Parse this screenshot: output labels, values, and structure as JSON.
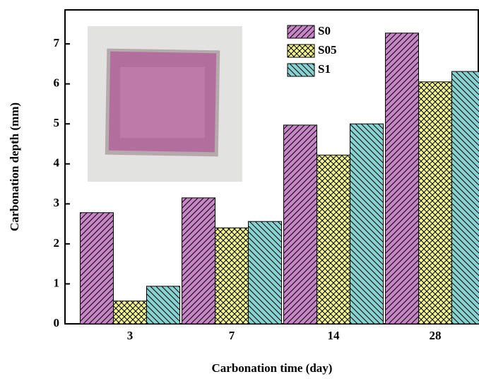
{
  "chart_data": {
    "type": "bar",
    "xlabel": "Carbonation time (day)",
    "ylabel": "Carbonation depth (mm)",
    "categories": [
      "3",
      "7",
      "14",
      "28"
    ],
    "series": [
      {
        "name": "S0",
        "color": "#c785c7",
        "hatch": "/",
        "values": [
          2.78,
          3.15,
          4.97,
          7.27
        ]
      },
      {
        "name": "S05",
        "color": "#f5f58a",
        "hatch": "x",
        "values": [
          0.57,
          2.4,
          4.22,
          6.05
        ]
      },
      {
        "name": "S1",
        "color": "#85d3d3",
        "hatch": "\\",
        "values": [
          0.94,
          2.56,
          5.0,
          6.31
        ]
      }
    ],
    "ylim": [
      0,
      7.85
    ],
    "yticks": [
      0,
      1,
      2,
      3,
      4,
      5,
      6,
      7
    ]
  }
}
